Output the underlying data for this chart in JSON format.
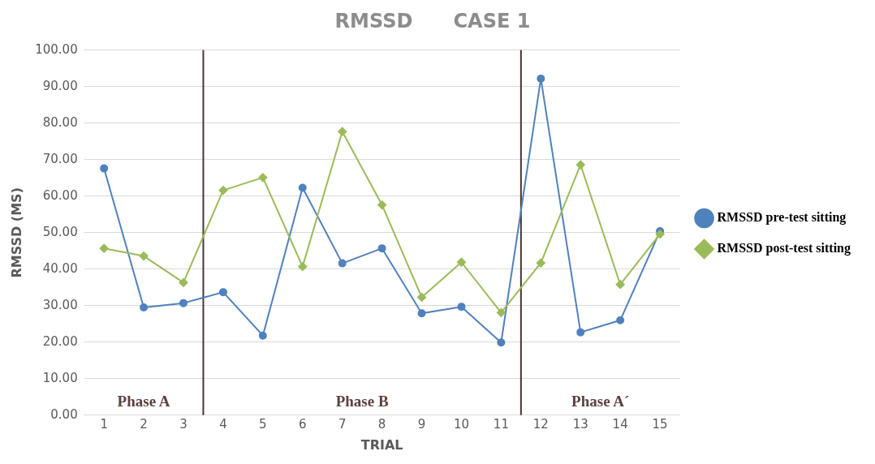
{
  "chart_data": {
    "type": "line",
    "title": "RMSSD      CASE 1",
    "xlabel": "TRIAL",
    "ylabel": "RMSSD (MS)",
    "x": [
      1,
      2,
      3,
      4,
      5,
      6,
      7,
      8,
      9,
      10,
      11,
      12,
      13,
      14,
      15
    ],
    "xlim": [
      0.5,
      15.5
    ],
    "xticks": [
      1,
      2,
      3,
      4,
      5,
      6,
      7,
      8,
      9,
      10,
      11,
      12,
      13,
      14,
      15
    ],
    "ylim": [
      0,
      100
    ],
    "yticks": [
      {
        "value": 0,
        "label": "0.00"
      },
      {
        "value": 10,
        "label": "10.00"
      },
      {
        "value": 20,
        "label": "20.00"
      },
      {
        "value": 30,
        "label": "30.00"
      },
      {
        "value": 40,
        "label": "40.00"
      },
      {
        "value": 50,
        "label": "50.00"
      },
      {
        "value": 60,
        "label": "60.00"
      },
      {
        "value": 70,
        "label": "70.00"
      },
      {
        "value": 80,
        "label": "80.00"
      },
      {
        "value": 90,
        "label": "90.00"
      },
      {
        "value": 100,
        "label": "100.00"
      }
    ],
    "grid": "y",
    "legend": "right",
    "series": [
      {
        "name": "RMSSD pre-test sitting",
        "color": "#4f81bd",
        "marker": "circle",
        "values": [
          67.6,
          29.5,
          30.7,
          33.7,
          21.8,
          62.3,
          41.6,
          45.7,
          27.9,
          29.7,
          19.9,
          92.2,
          22.7,
          26.0,
          50.4
        ]
      },
      {
        "name": "RMSSD post-test sitting",
        "color": "#9bbb59",
        "marker": "diamond",
        "values": [
          45.7,
          43.6,
          36.3,
          61.6,
          65.1,
          40.7,
          77.7,
          57.6,
          32.3,
          41.9,
          28.1,
          41.7,
          68.6,
          35.8,
          49.6
        ]
      }
    ],
    "ref_lines": [
      {
        "axis": "x",
        "value": 3.5,
        "color": "#4a3434"
      },
      {
        "axis": "x",
        "value": 11.5,
        "color": "#4a3434"
      }
    ],
    "annotations": [
      "Phase A",
      "Phase B",
      "Phase A´"
    ]
  }
}
